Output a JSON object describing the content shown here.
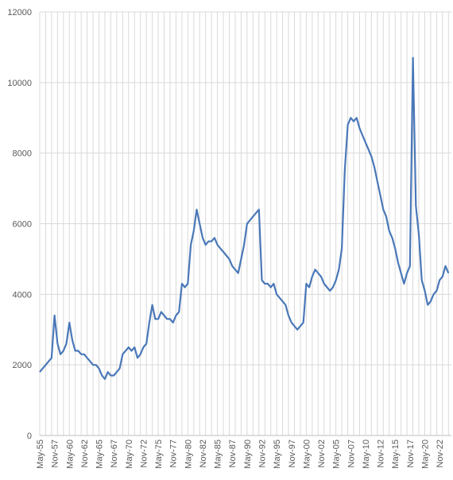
{
  "chart_data": {
    "type": "line",
    "categories": [
      "May-55",
      null,
      null,
      null,
      null,
      "Nov-57",
      null,
      null,
      null,
      null,
      "May-60",
      null,
      null,
      null,
      null,
      "Nov-62",
      null,
      null,
      null,
      null,
      "May-65",
      null,
      null,
      null,
      null,
      "Nov-67",
      null,
      null,
      null,
      null,
      "May-70",
      null,
      null,
      null,
      null,
      "Nov-72",
      null,
      null,
      null,
      null,
      "May-75",
      null,
      null,
      null,
      null,
      "Nov-77",
      null,
      null,
      null,
      null,
      "May-80",
      null,
      null,
      null,
      null,
      "Nov-82",
      null,
      null,
      null,
      null,
      "May-85",
      null,
      null,
      null,
      null,
      "Nov-87",
      null,
      null,
      null,
      null,
      "May-90",
      null,
      null,
      null,
      null,
      "Nov-92",
      null,
      null,
      null,
      null,
      "May-95",
      null,
      null,
      null,
      null,
      "Nov-97",
      null,
      null,
      null,
      null,
      "May-00",
      null,
      null,
      null,
      null,
      "Nov-02",
      null,
      null,
      null,
      null,
      "May-05",
      null,
      null,
      null,
      null,
      "Nov-07",
      null,
      null,
      null,
      null,
      "May-10",
      null,
      null,
      null,
      null,
      "Nov-12",
      null,
      null,
      null,
      null,
      "May-15",
      null,
      null,
      null,
      null,
      "Nov-17",
      null,
      null,
      null,
      null,
      "May-20",
      null,
      null,
      null,
      null,
      "Nov-22",
      null,
      null,
      null
    ],
    "values": [
      1800,
      1900,
      2000,
      2100,
      2200,
      3400,
      2600,
      2300,
      2400,
      2600,
      3200,
      2700,
      2400,
      2400,
      2300,
      2300,
      2200,
      2100,
      2000,
      2000,
      1900,
      1700,
      1600,
      1800,
      1700,
      1700,
      1800,
      1900,
      2300,
      2400,
      2500,
      2400,
      2500,
      2200,
      2300,
      2500,
      2600,
      3200,
      3700,
      3300,
      3300,
      3500,
      3400,
      3300,
      3300,
      3200,
      3400,
      3500,
      4300,
      4200,
      4300,
      5400,
      5800,
      6400,
      6000,
      5600,
      5400,
      5500,
      5500,
      5600,
      5400,
      5300,
      5200,
      5100,
      5000,
      4800,
      4700,
      4600,
      5000,
      5400,
      6000,
      6100,
      6200,
      6300,
      6400,
      4400,
      4300,
      4300,
      4200,
      4300,
      4000,
      3900,
      3800,
      3700,
      3400,
      3200,
      3100,
      3000,
      3100,
      3200,
      4300,
      4200,
      4500,
      4700,
      4600,
      4500,
      4300,
      4200,
      4100,
      4200,
      4400,
      4700,
      5300,
      7500,
      8800,
      9000,
      8900,
      9000,
      8700,
      8500,
      8300,
      8100,
      7900,
      7600,
      7200,
      6800,
      6400,
      6200,
      5800,
      5600,
      5300,
      4900,
      4600,
      4300,
      4600,
      4800,
      10700,
      6500,
      5700,
      4400,
      4100,
      3700,
      3800,
      4000,
      4100,
      4400,
      4500,
      4800,
      4600
    ],
    "color": "#4a78b8",
    "ylim": [
      0,
      12000
    ],
    "yticks": [
      0,
      2000,
      4000,
      6000,
      8000,
      10000,
      12000
    ],
    "grid": true
  }
}
